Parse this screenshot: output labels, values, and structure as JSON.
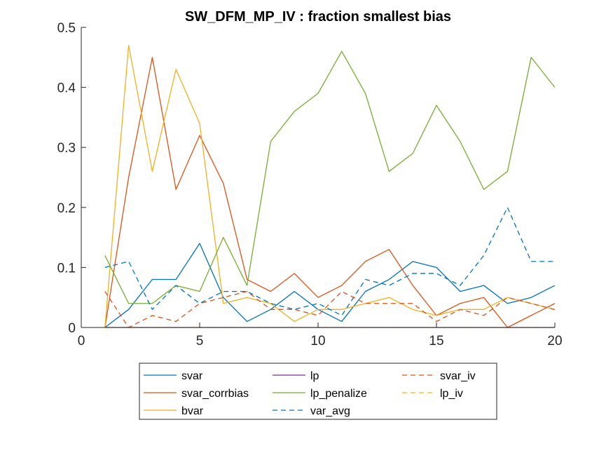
{
  "chart_data": {
    "type": "line",
    "title": "SW_DFM_MP_IV : fraction smallest bias",
    "xlabel": "",
    "ylabel": "",
    "xlim": [
      0,
      20
    ],
    "ylim": [
      0,
      0.5
    ],
    "x_ticks": [
      "0",
      "5",
      "10",
      "15",
      "20"
    ],
    "y_ticks": [
      "0",
      "0.1",
      "0.2",
      "0.3",
      "0.4",
      "0.5"
    ],
    "grid": false,
    "legend_placement": "bottom-outside",
    "x": [
      1,
      2,
      3,
      4,
      5,
      6,
      7,
      8,
      9,
      10,
      11,
      12,
      13,
      14,
      15,
      16,
      17,
      18,
      19,
      20
    ],
    "series": [
      {
        "name": "svar",
        "color": "#0072BD",
        "dash": "solid",
        "values": [
          0,
          0.03,
          0.08,
          0.08,
          0.14,
          0.05,
          0.01,
          0.03,
          0.06,
          0.03,
          0.01,
          0.06,
          0.08,
          0.11,
          0.1,
          0.06,
          0.07,
          0.04,
          0.05,
          0.07
        ]
      },
      {
        "name": "svar_corrbias",
        "color": "#D95319",
        "dash": "solid",
        "values": [
          0,
          0.25,
          0.45,
          0.23,
          0.32,
          0.24,
          0.08,
          0.06,
          0.09,
          0.05,
          0.07,
          0.11,
          0.13,
          0.07,
          0.02,
          0.04,
          0.05,
          0,
          0.02,
          0.04
        ]
      },
      {
        "name": "bvar",
        "color": "#EDB120",
        "dash": "solid",
        "values": [
          0,
          0.47,
          0.26,
          0.43,
          0.34,
          0.04,
          0.05,
          0.04,
          0.01,
          0.03,
          0.03,
          0.04,
          0.05,
          0.03,
          0.02,
          0.03,
          0.03,
          0.05,
          0.04,
          0.03
        ]
      },
      {
        "name": "lp",
        "color": "#7E2F8E",
        "dash": "solid",
        "values": [
          0,
          0,
          0,
          0,
          0,
          0,
          0,
          0,
          0,
          0,
          0,
          0,
          0,
          0,
          0,
          0,
          0,
          0,
          0,
          0
        ]
      },
      {
        "name": "lp_penalize",
        "color": "#77AC30",
        "dash": "solid",
        "values": [
          0.12,
          0.04,
          0.04,
          0.07,
          0.06,
          0.15,
          0.07,
          0.31,
          0.36,
          0.39,
          0.46,
          0.39,
          0.26,
          0.29,
          0.37,
          0.31,
          0.23,
          0.26,
          0.45,
          0.4
        ]
      },
      {
        "name": "var_avg",
        "color": "#0072BD",
        "dash": "dashed",
        "values": [
          0.1,
          0.11,
          0.03,
          0.07,
          0.04,
          0.06,
          0.06,
          0.04,
          0.03,
          0.04,
          0.02,
          0.08,
          0.07,
          0.09,
          0.09,
          0.07,
          0.12,
          0.2,
          0.11,
          0.11
        ]
      },
      {
        "name": "svar_iv",
        "color": "#D95319",
        "dash": "dashed",
        "values": [
          0.06,
          0,
          0.02,
          0.01,
          0.04,
          0.05,
          0.06,
          0.03,
          0.03,
          0.02,
          0.06,
          0.04,
          0.04,
          0.04,
          0.01,
          0.03,
          0.02,
          0.05,
          0.04,
          0.03
        ]
      },
      {
        "name": "lp_iv",
        "color": "#EDB120",
        "dash": "dashed",
        "values": [
          0,
          0,
          0,
          0,
          0,
          0,
          0,
          0,
          0,
          0,
          0,
          0,
          0,
          0,
          0,
          0,
          0,
          0,
          0,
          0
        ]
      }
    ],
    "legend_order": [
      0,
      3,
      6,
      1,
      4,
      7,
      2,
      5
    ]
  }
}
